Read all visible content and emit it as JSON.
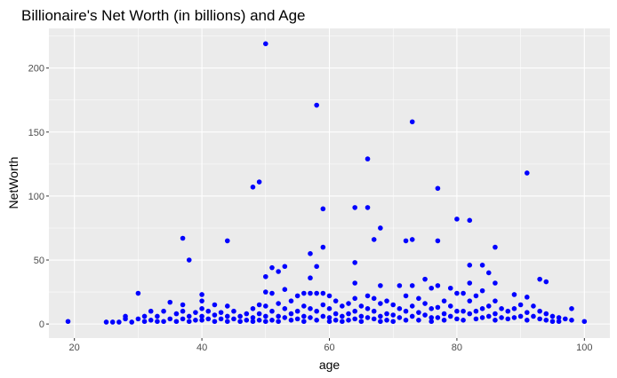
{
  "chart_data": {
    "type": "scatter",
    "title": "Billionaire's Net Worth (in billions) and Age",
    "xlabel": "age",
    "ylabel": "NetWorth",
    "xlim": [
      16,
      104
    ],
    "ylim": [
      -11,
      231
    ],
    "x_ticks": [
      20,
      40,
      60,
      80,
      100
    ],
    "y_ticks": [
      0,
      50,
      100,
      150,
      200
    ],
    "x_tick_labels": [
      "20",
      "40",
      "60",
      "80",
      "100"
    ],
    "y_tick_labels": [
      "0",
      "50",
      "100",
      "150",
      "200"
    ],
    "grid": true,
    "legend": "none",
    "colors": {
      "panel_background": "#ebebeb",
      "grid_major": "#ffffff",
      "point": "#0000ff"
    },
    "points": [
      [
        19,
        2
      ],
      [
        25,
        1.5
      ],
      [
        26,
        1.5
      ],
      [
        27,
        1.5
      ],
      [
        28,
        4
      ],
      [
        28,
        6
      ],
      [
        29,
        1.5
      ],
      [
        30,
        24
      ],
      [
        30,
        4
      ],
      [
        31,
        2
      ],
      [
        31,
        6
      ],
      [
        32,
        10
      ],
      [
        32,
        3
      ],
      [
        33,
        2
      ],
      [
        33,
        6
      ],
      [
        34,
        10
      ],
      [
        34,
        2
      ],
      [
        35,
        17
      ],
      [
        35,
        4
      ],
      [
        36,
        8
      ],
      [
        36,
        2
      ],
      [
        37,
        67
      ],
      [
        37,
        15
      ],
      [
        37,
        10
      ],
      [
        37,
        4
      ],
      [
        38,
        50
      ],
      [
        38,
        6
      ],
      [
        38,
        2
      ],
      [
        39,
        9
      ],
      [
        39,
        3
      ],
      [
        40,
        23
      ],
      [
        40,
        18
      ],
      [
        40,
        12
      ],
      [
        40,
        6
      ],
      [
        40,
        3
      ],
      [
        41,
        10
      ],
      [
        41,
        4
      ],
      [
        42,
        15
      ],
      [
        42,
        7
      ],
      [
        42,
        2
      ],
      [
        43,
        9
      ],
      [
        43,
        4
      ],
      [
        44,
        65
      ],
      [
        44,
        14
      ],
      [
        44,
        6
      ],
      [
        44,
        2
      ],
      [
        45,
        10
      ],
      [
        45,
        4
      ],
      [
        46,
        6
      ],
      [
        46,
        2
      ],
      [
        47,
        8
      ],
      [
        47,
        3
      ],
      [
        48,
        107
      ],
      [
        48,
        12
      ],
      [
        48,
        5
      ],
      [
        48,
        2
      ],
      [
        49,
        111
      ],
      [
        49,
        15
      ],
      [
        49,
        8
      ],
      [
        49,
        3
      ],
      [
        50,
        219
      ],
      [
        50,
        37
      ],
      [
        50,
        25
      ],
      [
        50,
        14
      ],
      [
        50,
        6
      ],
      [
        50,
        2
      ],
      [
        51,
        44
      ],
      [
        51,
        24
      ],
      [
        51,
        10
      ],
      [
        51,
        3
      ],
      [
        52,
        41
      ],
      [
        52,
        16
      ],
      [
        52,
        6
      ],
      [
        52,
        2
      ],
      [
        53,
        45
      ],
      [
        53,
        27
      ],
      [
        53,
        12
      ],
      [
        53,
        5
      ],
      [
        54,
        18
      ],
      [
        54,
        8
      ],
      [
        54,
        3
      ],
      [
        55,
        22
      ],
      [
        55,
        10
      ],
      [
        55,
        4
      ],
      [
        56,
        24
      ],
      [
        56,
        14
      ],
      [
        56,
        6
      ],
      [
        56,
        2
      ],
      [
        57,
        55
      ],
      [
        57,
        36
      ],
      [
        57,
        24
      ],
      [
        57,
        12
      ],
      [
        57,
        5
      ],
      [
        58,
        171
      ],
      [
        58,
        45
      ],
      [
        58,
        24
      ],
      [
        58,
        10
      ],
      [
        58,
        3
      ],
      [
        59,
        90
      ],
      [
        59,
        60
      ],
      [
        59,
        24
      ],
      [
        59,
        15
      ],
      [
        59,
        6
      ],
      [
        60,
        22
      ],
      [
        60,
        12
      ],
      [
        60,
        5
      ],
      [
        60,
        2
      ],
      [
        61,
        18
      ],
      [
        61,
        8
      ],
      [
        61,
        3
      ],
      [
        62,
        14
      ],
      [
        62,
        6
      ],
      [
        62,
        2
      ],
      [
        63,
        16
      ],
      [
        63,
        8
      ],
      [
        63,
        3
      ],
      [
        64,
        91
      ],
      [
        64,
        48
      ],
      [
        64,
        32
      ],
      [
        64,
        20
      ],
      [
        64,
        10
      ],
      [
        64,
        4
      ],
      [
        65,
        14
      ],
      [
        65,
        6
      ],
      [
        65,
        2
      ],
      [
        66,
        129
      ],
      [
        66,
        91
      ],
      [
        66,
        22
      ],
      [
        66,
        12
      ],
      [
        66,
        5
      ],
      [
        67,
        66
      ],
      [
        67,
        20
      ],
      [
        67,
        10
      ],
      [
        67,
        4
      ],
      [
        68,
        75
      ],
      [
        68,
        30
      ],
      [
        68,
        16
      ],
      [
        68,
        6
      ],
      [
        68,
        2
      ],
      [
        69,
        18
      ],
      [
        69,
        8
      ],
      [
        69,
        3
      ],
      [
        70,
        15
      ],
      [
        70,
        7
      ],
      [
        70,
        2
      ],
      [
        71,
        30
      ],
      [
        71,
        12
      ],
      [
        71,
        5
      ],
      [
        72,
        65
      ],
      [
        72,
        22
      ],
      [
        72,
        10
      ],
      [
        72,
        3
      ],
      [
        73,
        158
      ],
      [
        73,
        66
      ],
      [
        73,
        30
      ],
      [
        73,
        14
      ],
      [
        73,
        6
      ],
      [
        74,
        20
      ],
      [
        74,
        9
      ],
      [
        74,
        3
      ],
      [
        75,
        35
      ],
      [
        75,
        16
      ],
      [
        75,
        7
      ],
      [
        76,
        28
      ],
      [
        76,
        12
      ],
      [
        76,
        5
      ],
      [
        76,
        2
      ],
      [
        77,
        106
      ],
      [
        77,
        65
      ],
      [
        77,
        30
      ],
      [
        77,
        13
      ],
      [
        77,
        5
      ],
      [
        78,
        18
      ],
      [
        78,
        8
      ],
      [
        78,
        3
      ],
      [
        79,
        28
      ],
      [
        79,
        14
      ],
      [
        79,
        6
      ],
      [
        80,
        82
      ],
      [
        80,
        24
      ],
      [
        80,
        10
      ],
      [
        80,
        4
      ],
      [
        81,
        24
      ],
      [
        81,
        10
      ],
      [
        81,
        3
      ],
      [
        82,
        81
      ],
      [
        82,
        46
      ],
      [
        82,
        32
      ],
      [
        82,
        18
      ],
      [
        82,
        8
      ],
      [
        83,
        22
      ],
      [
        83,
        10
      ],
      [
        83,
        4
      ],
      [
        84,
        46
      ],
      [
        84,
        26
      ],
      [
        84,
        12
      ],
      [
        84,
        5
      ],
      [
        85,
        40
      ],
      [
        85,
        14
      ],
      [
        85,
        6
      ],
      [
        86,
        60
      ],
      [
        86,
        32
      ],
      [
        86,
        18
      ],
      [
        86,
        8
      ],
      [
        86,
        3
      ],
      [
        87,
        12
      ],
      [
        87,
        5
      ],
      [
        88,
        10
      ],
      [
        88,
        4
      ],
      [
        89,
        23
      ],
      [
        89,
        12
      ],
      [
        89,
        5
      ],
      [
        90,
        15
      ],
      [
        90,
        6
      ],
      [
        91,
        118
      ],
      [
        91,
        21
      ],
      [
        91,
        9
      ],
      [
        91,
        3
      ],
      [
        92,
        14
      ],
      [
        92,
        6
      ],
      [
        93,
        35
      ],
      [
        93,
        10
      ],
      [
        93,
        4
      ],
      [
        94,
        33
      ],
      [
        94,
        8
      ],
      [
        94,
        3
      ],
      [
        95,
        6
      ],
      [
        95,
        2
      ],
      [
        96,
        5
      ],
      [
        96,
        2
      ],
      [
        97,
        4
      ],
      [
        98,
        12
      ],
      [
        98,
        3
      ],
      [
        100,
        2
      ]
    ]
  }
}
